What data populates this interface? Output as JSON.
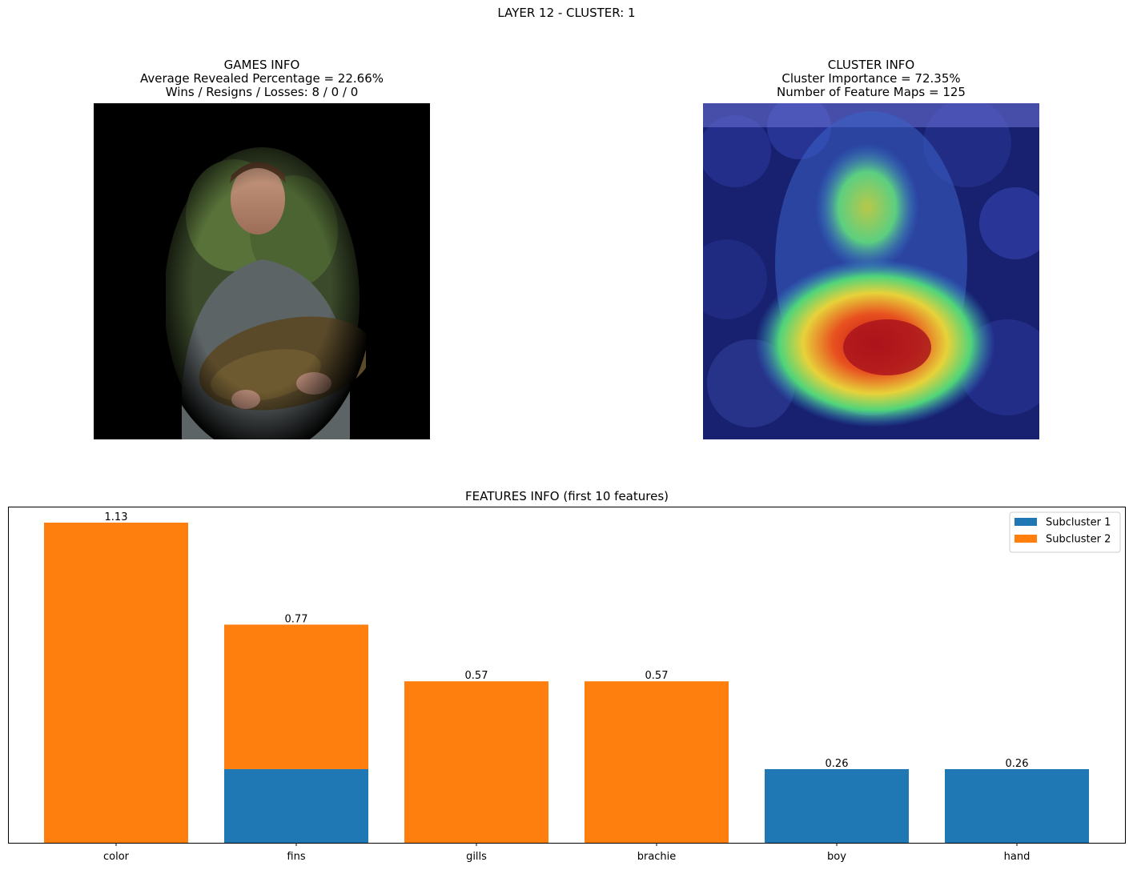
{
  "figure": {
    "suptitle": "LAYER 12 - CLUSTER: 1"
  },
  "games_panel": {
    "lines": [
      "GAMES INFO",
      "Average Revealed Percentage = 22.66%",
      "Wins / Resigns / Losses: 8 / 0 / 0"
    ]
  },
  "cluster_panel": {
    "lines": [
      "CLUSTER INFO",
      "Cluster Importance = 72.35%",
      "Number of Feature Maps = 125"
    ]
  },
  "features_panel": {
    "title": "FEATURES INFO (first 10 features)"
  },
  "colors": {
    "subcluster1": "#1f77b4",
    "subcluster2": "#ff7f0e"
  },
  "chart_data": {
    "type": "bar",
    "stacked": true,
    "title": "FEATURES INFO (first 10 features)",
    "categories": [
      "color",
      "fins",
      "gills",
      "brachie",
      "boy",
      "hand"
    ],
    "series": [
      {
        "name": "Subcluster 1",
        "values": [
          0,
          0.26,
          0,
          0,
          0.26,
          0.26
        ]
      },
      {
        "name": "Subcluster 2",
        "values": [
          1.13,
          0.51,
          0.57,
          0.57,
          0,
          0
        ]
      }
    ],
    "data_labels": [
      "1.13",
      "0.77",
      "0.57",
      "0.57",
      "0.26",
      "0.26"
    ],
    "ylim": [
      0,
      1.1865
    ],
    "y_ticks_visible": false,
    "grid": false,
    "legend_position": "upper-right"
  }
}
